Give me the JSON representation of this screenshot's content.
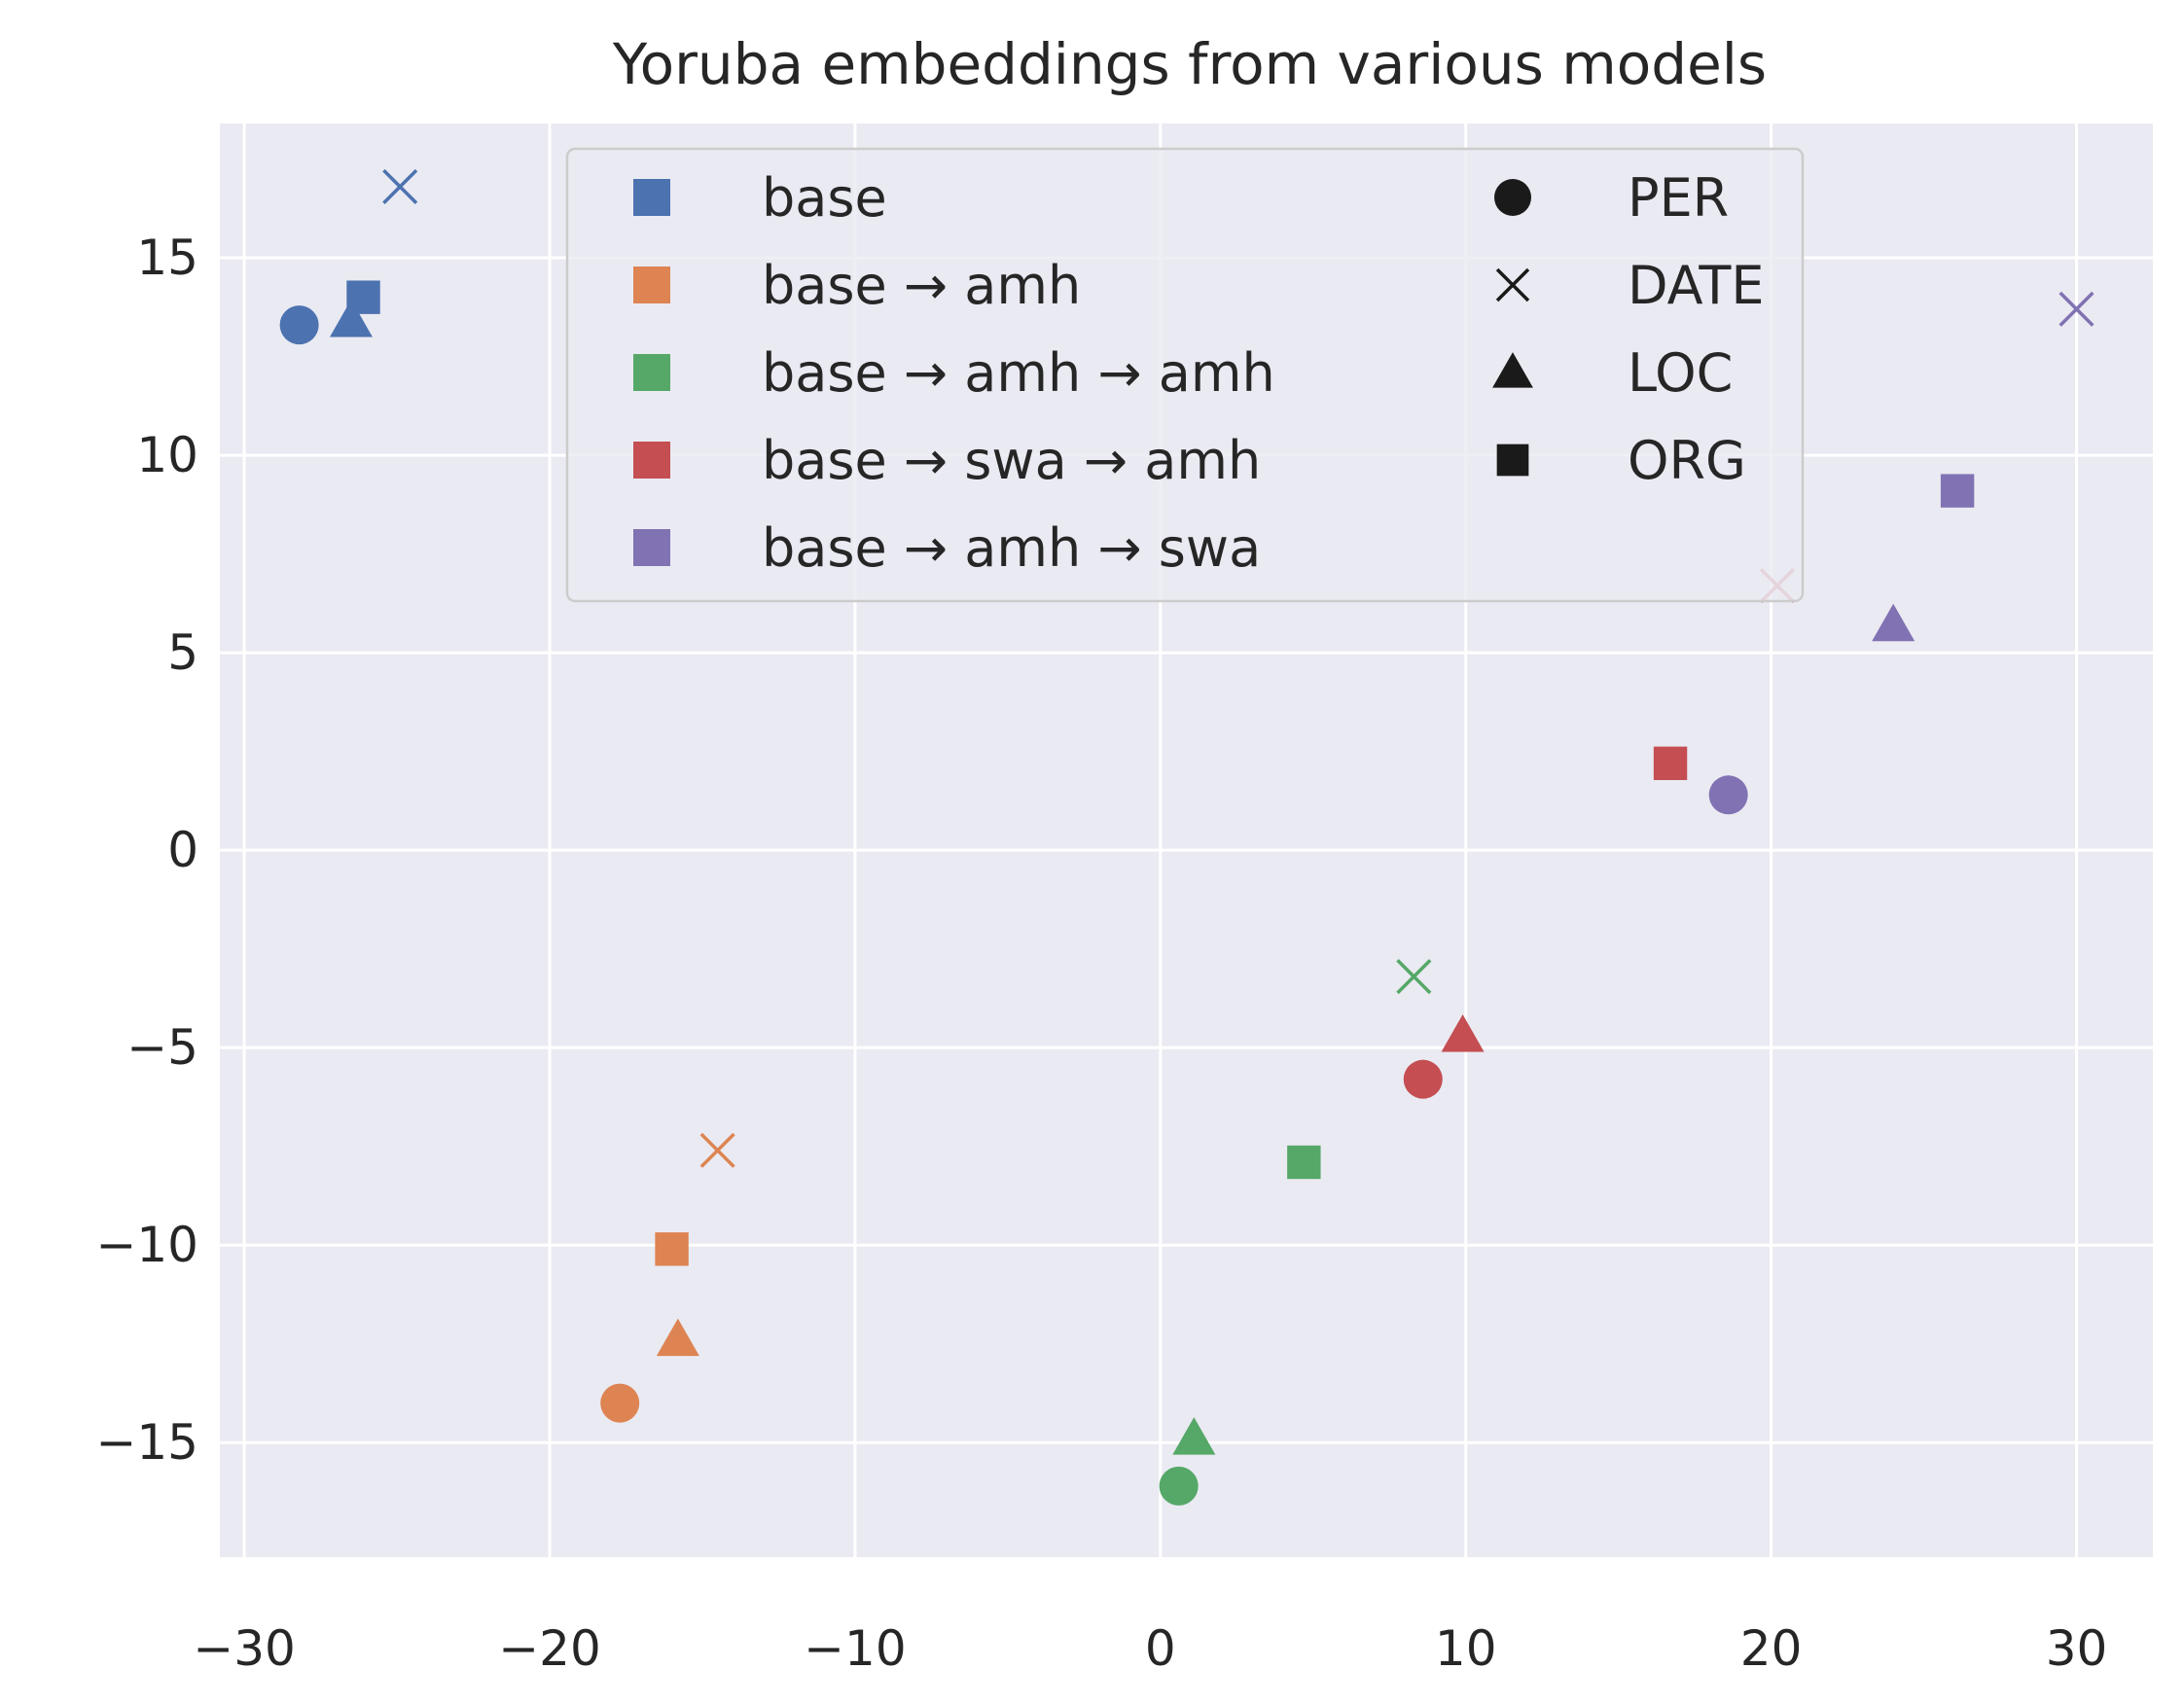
{
  "chart_data": {
    "type": "scatter",
    "title": "Yoruba embeddings from various models",
    "xlabel": "",
    "ylabel": "",
    "xlim": [
      -30.8,
      32.5
    ],
    "ylim": [
      -17.9,
      18.4
    ],
    "xticks": [
      -30,
      -20,
      -10,
      0,
      10,
      20,
      30
    ],
    "xtick_labels": [
      "−30",
      "−20",
      "−10",
      "0",
      "10",
      "20",
      "30"
    ],
    "yticks": [
      -15,
      -10,
      -5,
      0,
      5,
      10,
      15
    ],
    "ytick_labels": [
      "−15",
      "−10",
      "−5",
      "0",
      "5",
      "10",
      "15"
    ],
    "grid": true,
    "legend_placement": "top-center",
    "colors": {
      "base": "#4c72b0",
      "base → amh": "#dd8452",
      "base → amh → amh": "#55a868",
      "base → swa → amh": "#c44e52",
      "base → amh → swa": "#8172b3"
    },
    "legend": {
      "models": [
        "base",
        "base → amh",
        "base → amh → amh",
        "base → swa → amh",
        "base → amh → swa"
      ],
      "entity_types": [
        {
          "label": "PER",
          "marker": "circle"
        },
        {
          "label": "DATE",
          "marker": "x"
        },
        {
          "label": "LOC",
          "marker": "triangle"
        },
        {
          "label": "ORG",
          "marker": "square"
        }
      ]
    },
    "series": [
      {
        "name": "base",
        "points": [
          {
            "type": "PER",
            "x": -28.2,
            "y": 13.3
          },
          {
            "type": "DATE",
            "x": -24.9,
            "y": 16.8
          },
          {
            "type": "LOC",
            "x": -26.5,
            "y": 13.4
          },
          {
            "type": "ORG",
            "x": -26.1,
            "y": 14.0
          }
        ]
      },
      {
        "name": "base → amh",
        "points": [
          {
            "type": "PER",
            "x": -17.7,
            "y": -14.0
          },
          {
            "type": "DATE",
            "x": -14.5,
            "y": -7.6
          },
          {
            "type": "LOC",
            "x": -15.8,
            "y": -12.4
          },
          {
            "type": "ORG",
            "x": -16.0,
            "y": -10.1
          }
        ]
      },
      {
        "name": "base → amh → amh",
        "points": [
          {
            "type": "PER",
            "x": 0.6,
            "y": -16.1
          },
          {
            "type": "DATE",
            "x": 8.3,
            "y": -3.2
          },
          {
            "type": "LOC",
            "x": 1.1,
            "y": -14.9
          },
          {
            "type": "ORG",
            "x": 4.7,
            "y": -7.9
          }
        ]
      },
      {
        "name": "base → swa → amh",
        "points": [
          {
            "type": "PER",
            "x": 8.6,
            "y": -5.8
          },
          {
            "type": "DATE",
            "x": 20.2,
            "y": 6.7
          },
          {
            "type": "LOC",
            "x": 9.9,
            "y": -4.7
          },
          {
            "type": "ORG",
            "x": 16.7,
            "y": 2.2
          }
        ]
      },
      {
        "name": "base → amh → swa",
        "points": [
          {
            "type": "PER",
            "x": 18.6,
            "y": 1.4
          },
          {
            "type": "DATE",
            "x": 30.0,
            "y": 13.7
          },
          {
            "type": "LOC",
            "x": 24.0,
            "y": 5.7
          },
          {
            "type": "ORG",
            "x": 26.1,
            "y": 9.1
          }
        ]
      }
    ]
  }
}
